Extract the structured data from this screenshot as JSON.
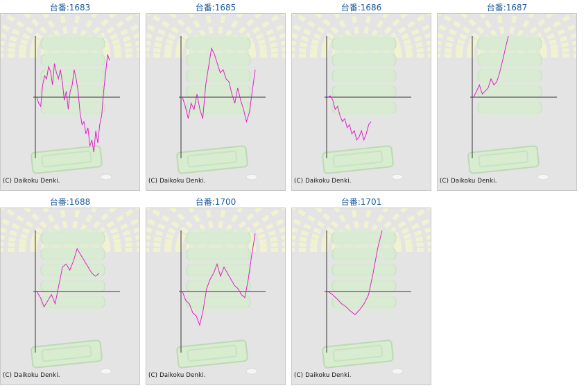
{
  "copyright": "(C) Daikoku Denki.",
  "line_color": "#e020c8",
  "chart_data": [
    {
      "type": "line",
      "title": "台番:1683",
      "values": [
        0,
        -0.1,
        -0.15,
        0.2,
        0.35,
        0.3,
        0.5,
        0.42,
        0.2,
        0.55,
        0.4,
        0.3,
        0.45,
        0.25,
        -0.05,
        0.1,
        -0.2,
        0.1,
        0.2,
        0.45,
        0.3,
        0.1,
        -0.25,
        -0.45,
        -0.4,
        -0.6,
        -0.5,
        -0.8,
        -0.7,
        -0.9,
        -0.55,
        -0.75,
        -0.45,
        -0.3,
        0.1,
        0.4,
        0.7,
        0.6
      ]
    },
    {
      "type": "line",
      "title": "台番:1685",
      "values": [
        0,
        -0.15,
        -0.35,
        -0.1,
        -0.2,
        0.05,
        -0.2,
        -0.35,
        0.2,
        0.5,
        0.8,
        0.7,
        0.55,
        0.4,
        0.45,
        0.3,
        0.25,
        0.05,
        -0.1,
        0.15,
        -0.05,
        -0.2,
        -0.4,
        -0.25,
        0.1,
        0.45
      ]
    },
    {
      "type": "line",
      "title": "台番:1686",
      "values": [
        0,
        0.02,
        -0.05,
        -0.2,
        -0.15,
        -0.3,
        -0.4,
        -0.35,
        -0.5,
        -0.45,
        -0.6,
        -0.55,
        -0.7,
        -0.65,
        -0.55,
        -0.7,
        -0.6,
        -0.45,
        -0.4
      ]
    },
    {
      "type": "line",
      "title": "台番:1687",
      "values": [
        0,
        0.1,
        0.2,
        0.05,
        0.1,
        0.15,
        0.3,
        0.2,
        0.25,
        0.4,
        0.6,
        0.8,
        1.0
      ]
    },
    {
      "type": "line",
      "title": "台番:1688",
      "values": [
        0,
        -0.1,
        -0.25,
        -0.15,
        -0.05,
        -0.2,
        0.1,
        0.4,
        0.45,
        0.35,
        0.5,
        0.7,
        0.6,
        0.5,
        0.4,
        0.3,
        0.25,
        0.3
      ]
    },
    {
      "type": "line",
      "title": "台番:1700",
      "values": [
        0,
        -0.15,
        -0.2,
        -0.35,
        -0.4,
        -0.55,
        -0.3,
        0.05,
        0.2,
        0.3,
        0.45,
        0.25,
        0.4,
        0.3,
        0.2,
        0.1,
        0.05,
        -0.05,
        -0.1,
        0.2,
        0.6,
        0.95
      ]
    },
    {
      "type": "line",
      "title": "台番:1701",
      "values": [
        0,
        -0.05,
        -0.12,
        -0.2,
        -0.25,
        -0.32,
        -0.38,
        -0.3,
        -0.2,
        -0.05,
        0.3,
        0.7,
        1.0
      ]
    }
  ]
}
